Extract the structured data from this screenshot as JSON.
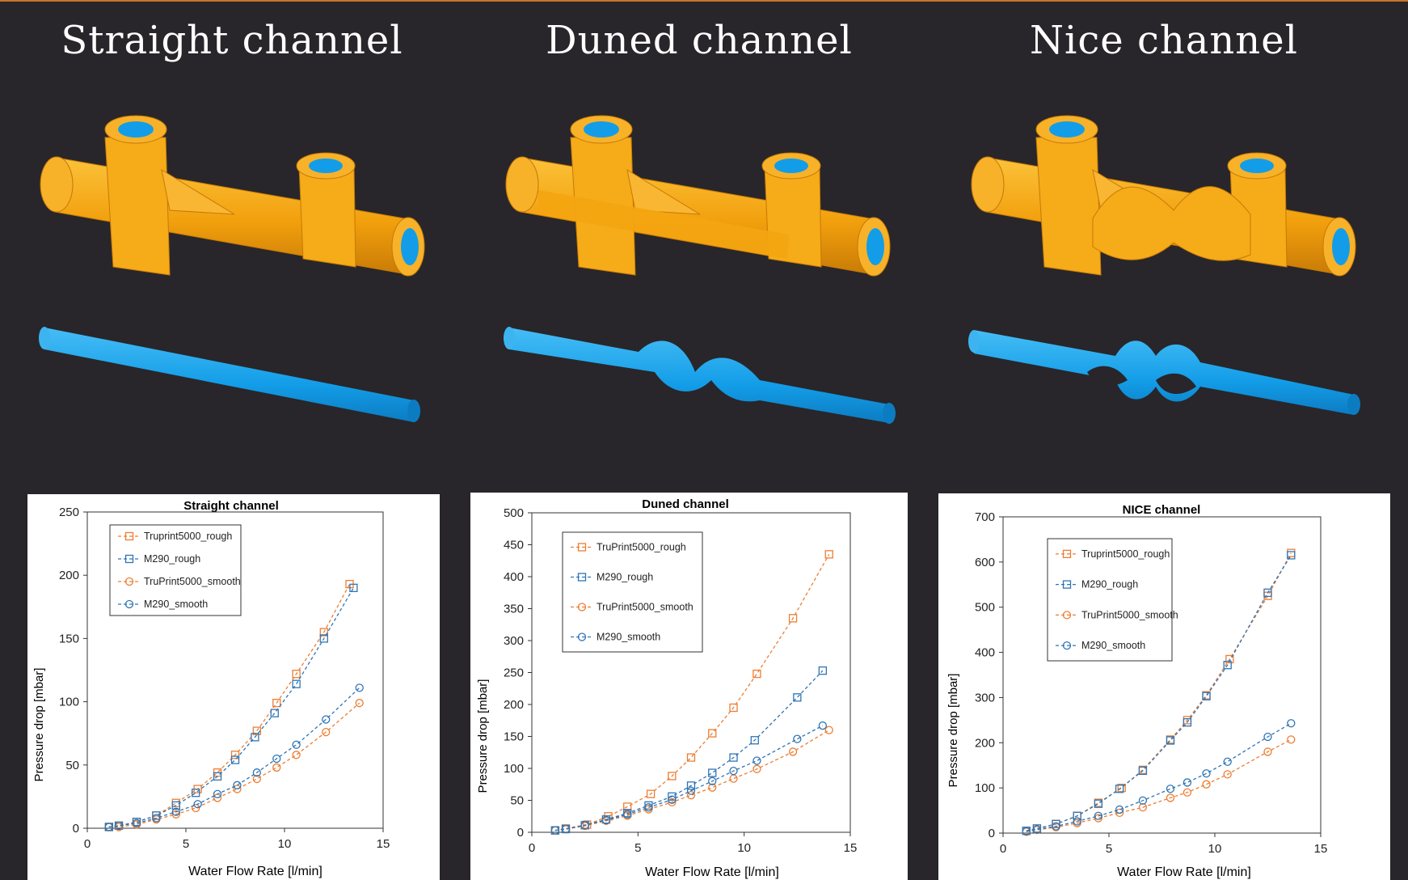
{
  "columns": [
    {
      "title": "Straight channel"
    },
    {
      "title": "Duned channel"
    },
    {
      "title": "Nice channel"
    }
  ],
  "colors": {
    "background": "#28262a",
    "part_orange": "#f4a20c",
    "channel_blue": "#15a0ea",
    "series_orange": "#ed7d31",
    "series_blue": "#2e75b6"
  },
  "chart_data": [
    {
      "type": "line",
      "title": "Straight channel",
      "xlabel": "Water Flow Rate [l/min]",
      "ylabel": "Pressure drop [mbar]",
      "xlim": [
        0,
        15
      ],
      "ylim": [
        0,
        250
      ],
      "xticks": [
        0,
        5,
        10,
        15
      ],
      "yticks": [
        0,
        50,
        100,
        150,
        200,
        250
      ],
      "legend": "top-left",
      "series": [
        {
          "name": "Truprint5000_rough",
          "marker": "square",
          "color": "#ed7d31",
          "x": [
            1.1,
            1.6,
            2.5,
            3.5,
            4.5,
            5.6,
            6.6,
            7.5,
            8.6,
            9.6,
            10.6,
            12.0,
            13.3
          ],
          "y": [
            1,
            2,
            5,
            10,
            20,
            31,
            44,
            58,
            77,
            99,
            122,
            155,
            193
          ]
        },
        {
          "name": "M290_rough",
          "marker": "square",
          "color": "#2e75b6",
          "x": [
            1.1,
            1.6,
            2.5,
            3.5,
            4.5,
            5.5,
            6.6,
            7.5,
            8.5,
            9.5,
            10.6,
            12.0,
            13.5
          ],
          "y": [
            1,
            2,
            5,
            10,
            18,
            28,
            41,
            54,
            72,
            91,
            114,
            150,
            190
          ]
        },
        {
          "name": "TruPrint5000_smooth",
          "marker": "circle",
          "color": "#ed7d31",
          "x": [
            1.1,
            1.6,
            2.5,
            3.5,
            4.5,
            5.5,
            6.6,
            7.6,
            8.6,
            9.6,
            10.6,
            12.1,
            13.8
          ],
          "y": [
            1,
            1,
            3,
            7,
            11,
            16,
            24,
            31,
            39,
            48,
            58,
            76,
            99
          ]
        },
        {
          "name": "M290_smooth",
          "marker": "circle",
          "color": "#2e75b6",
          "x": [
            1.1,
            1.6,
            2.5,
            3.5,
            4.5,
            5.6,
            6.6,
            7.6,
            8.6,
            9.6,
            10.6,
            12.1,
            13.8
          ],
          "y": [
            1,
            2,
            4,
            8,
            13,
            19,
            27,
            34,
            44,
            55,
            66,
            86,
            111
          ]
        }
      ]
    },
    {
      "type": "line",
      "title": "Duned channel",
      "xlabel": "Water Flow Rate [l/min]",
      "ylabel": "Pressure drop [mbar]",
      "xlim": [
        0,
        15
      ],
      "ylim": [
        0,
        500
      ],
      "xticks": [
        0,
        5,
        10,
        15
      ],
      "yticks": [
        0,
        50,
        100,
        150,
        200,
        250,
        300,
        350,
        400,
        450,
        500
      ],
      "legend": "top-left",
      "series": [
        {
          "name": "TruPrint5000_rough",
          "marker": "square",
          "color": "#ed7d31",
          "x": [
            1.1,
            1.6,
            2.6,
            3.6,
            4.5,
            5.6,
            6.6,
            7.5,
            8.5,
            9.5,
            10.6,
            12.3,
            14.0
          ],
          "y": [
            3,
            6,
            12,
            25,
            40,
            60,
            88,
            117,
            155,
            195,
            248,
            335,
            435
          ]
        },
        {
          "name": "M290_rough",
          "marker": "square",
          "color": "#2e75b6",
          "x": [
            1.1,
            1.6,
            2.5,
            3.5,
            4.5,
            5.5,
            6.6,
            7.5,
            8.5,
            9.5,
            10.5,
            12.5,
            13.7
          ],
          "y": [
            3,
            5,
            11,
            20,
            30,
            42,
            56,
            73,
            93,
            117,
            144,
            211,
            253
          ]
        },
        {
          "name": "TruPrint5000_smooth",
          "marker": "circle",
          "color": "#ed7d31",
          "x": [
            1.1,
            1.6,
            2.5,
            3.5,
            4.5,
            5.5,
            6.6,
            7.5,
            8.5,
            9.5,
            10.6,
            12.3,
            14.0
          ],
          "y": [
            3,
            5,
            10,
            18,
            26,
            36,
            47,
            58,
            70,
            84,
            99,
            126,
            160
          ]
        },
        {
          "name": "M290_smooth",
          "marker": "circle",
          "color": "#2e75b6",
          "x": [
            1.1,
            1.6,
            2.5,
            3.5,
            4.5,
            5.5,
            6.6,
            7.5,
            8.5,
            9.5,
            10.6,
            12.5,
            13.7
          ],
          "y": [
            3,
            5,
            11,
            19,
            28,
            39,
            51,
            65,
            80,
            96,
            112,
            146,
            167
          ]
        }
      ]
    },
    {
      "type": "line",
      "title": "NICE channel",
      "xlabel": "Water Flow Rate [l/min]",
      "ylabel": "Pressure drop [mbar]",
      "xlim": [
        0,
        15
      ],
      "ylim": [
        0,
        700
      ],
      "xticks": [
        0,
        5,
        10,
        15
      ],
      "yticks": [
        0,
        100,
        200,
        300,
        400,
        500,
        600,
        700
      ],
      "legend": "top-left",
      "series": [
        {
          "name": "Truprint5000_rough",
          "marker": "square",
          "color": "#ed7d31",
          "x": [
            1.1,
            1.6,
            2.5,
            3.5,
            4.5,
            5.6,
            6.6,
            7.9,
            8.7,
            9.6,
            10.7,
            12.5,
            13.6
          ],
          "y": [
            5,
            10,
            20,
            38,
            67,
            100,
            140,
            207,
            250,
            305,
            385,
            525,
            620
          ]
        },
        {
          "name": "M290_rough",
          "marker": "square",
          "color": "#2e75b6",
          "x": [
            1.1,
            1.6,
            2.5,
            3.5,
            4.5,
            5.5,
            6.6,
            7.9,
            8.7,
            9.6,
            10.6,
            12.5,
            13.6
          ],
          "y": [
            5,
            10,
            20,
            38,
            65,
            98,
            138,
            205,
            245,
            303,
            372,
            532,
            615
          ]
        },
        {
          "name": "TruPrint5000_smooth",
          "marker": "circle",
          "color": "#ed7d31",
          "x": [
            1.1,
            1.6,
            2.5,
            3.5,
            4.5,
            5.5,
            6.6,
            7.9,
            8.7,
            9.6,
            10.6,
            12.5,
            13.6
          ],
          "y": [
            3,
            7,
            13,
            22,
            33,
            45,
            57,
            78,
            90,
            108,
            130,
            180,
            207
          ]
        },
        {
          "name": "M290_smooth",
          "marker": "circle",
          "color": "#2e75b6",
          "x": [
            1.1,
            1.6,
            2.5,
            3.5,
            4.5,
            5.5,
            6.6,
            7.9,
            8.7,
            9.6,
            10.6,
            12.5,
            13.6
          ],
          "y": [
            4,
            8,
            15,
            26,
            38,
            52,
            72,
            98,
            112,
            132,
            158,
            213,
            243
          ]
        }
      ]
    }
  ]
}
